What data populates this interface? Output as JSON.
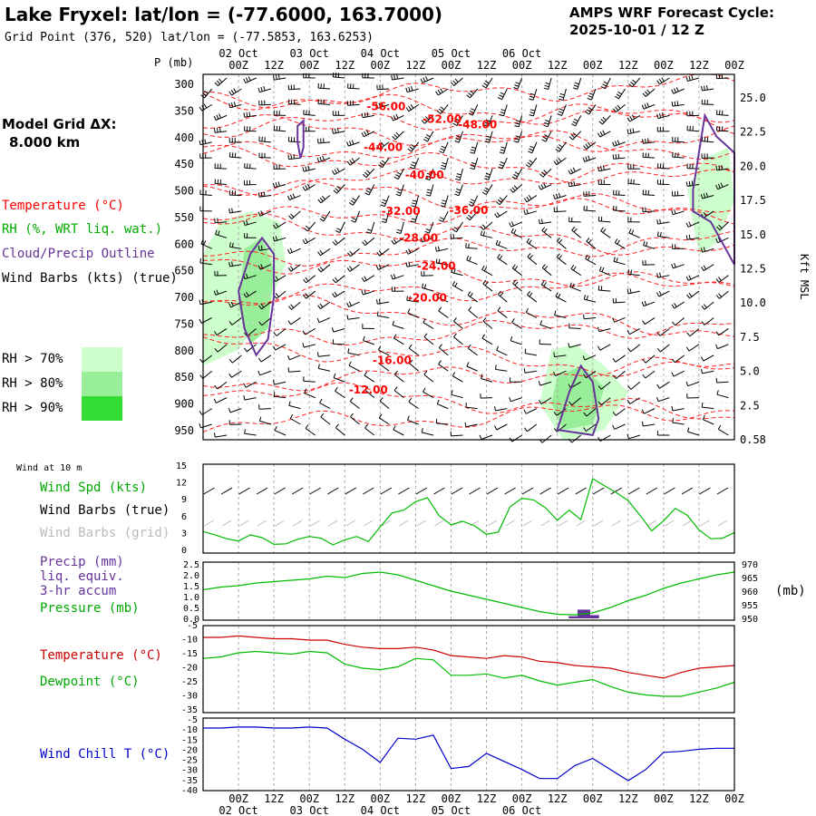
{
  "header": {
    "title": "Lake Fryxel:  lat/lon = (-77.6000, 163.7000)",
    "subtitle": "Grid Point (376, 520) lat/lon = (-77.5853, 163.6253)",
    "cycle_line1": "AMPS WRF Forecast Cycle:",
    "cycle_line2": "2025-10-01 / 12  Z"
  },
  "model_grid": {
    "label": "Model Grid ΔX:",
    "value": "8.000 km"
  },
  "time_axis": {
    "day_labels": [
      "02 Oct",
      "03 Oct",
      "04 Oct",
      "05 Oct",
      "06 Oct"
    ],
    "hour_labels": [
      "00Z",
      "12Z",
      "00Z",
      "12Z",
      "00Z",
      "12Z",
      "00Z",
      "12Z",
      "00Z",
      "12Z"
    ]
  },
  "legend": {
    "temperature": "Temperature (°C)",
    "rh": "RH (%, WRT liq. wat.)",
    "cloud": "Cloud/Precip Outline",
    "wind": "Wind Barbs (kts) (true)",
    "rh70": "RH > 70%",
    "rh80": "RH > 80%",
    "rh90": "RH > 90%",
    "colors": {
      "temperature": "#ff0000",
      "rh": "#ff0000",
      "cloud": "#663399",
      "wind": "#000000",
      "rh70": "#ccffcc",
      "rh80": "#99ee99",
      "rh90": "#33dd33"
    }
  },
  "panel_labels": {
    "wind_at_10m": "Wind at 10 m",
    "wind_spd": "Wind Spd (kts)",
    "barbs_true": "Wind Barbs (true)",
    "barbs_grid": "Wind Barbs (grid)",
    "precip_1": "Precip (mm)",
    "precip_2": "liq. equiv.",
    "precip_3": "3-hr accum",
    "pressure": "Pressure (mb)",
    "pressure_units": "(mb)",
    "temperature": "Temperature (°C)",
    "dewpoint": "Dewpoint (°C)",
    "windchill": "Wind Chill T (°C)"
  },
  "chart_data": [
    {
      "type": "heatmap",
      "name_note": "upper-air time-height cross section",
      "ylabel": "P (mb)",
      "y2label": "Kft MSL",
      "pressure_levels": [
        300,
        350,
        400,
        450,
        500,
        550,
        600,
        650,
        700,
        750,
        800,
        850,
        900,
        950
      ],
      "height_kft_labels": [
        "25.0",
        "22.5",
        "20.0",
        "17.5",
        "15.0",
        "12.5",
        "10.0",
        "7.5",
        "5.0",
        "2.5",
        "0.58"
      ],
      "temperature_contour_labels": [
        {
          "label": "-56.00",
          "x_hour": 50,
          "p": 343
        },
        {
          "label": "-52.00",
          "x_hour": 69,
          "p": 367
        },
        {
          "label": "-48.00",
          "x_hour": 81,
          "p": 377
        },
        {
          "label": "-44.00",
          "x_hour": 49,
          "p": 420
        },
        {
          "label": "-40.00",
          "x_hour": 63,
          "p": 472
        },
        {
          "label": "-36.00",
          "x_hour": 78,
          "p": 538
        },
        {
          "label": "-32.00",
          "x_hour": 55,
          "p": 540
        },
        {
          "label": "-28.00",
          "x_hour": 61,
          "p": 590
        },
        {
          "label": "-24.00",
          "x_hour": 67,
          "p": 643
        },
        {
          "label": "-20.00",
          "x_hour": 64,
          "p": 702
        },
        {
          "label": "-16.00",
          "x_hour": 52,
          "p": 820
        },
        {
          "label": "-12.00",
          "x_hour": 44,
          "p": 875
        }
      ],
      "rh_regions": [
        {
          "level": 70,
          "points": [
            [
              -12,
              620
            ],
            [
              -6,
              560
            ],
            [
              4,
              540
            ],
            [
              14,
              560
            ],
            [
              16,
              640
            ],
            [
              10,
              720
            ],
            [
              0,
              800
            ],
            [
              -12,
              830
            ]
          ]
        },
        {
          "level": 80,
          "points": [
            [
              2,
              610
            ],
            [
              8,
              590
            ],
            [
              12,
              650
            ],
            [
              10,
              760
            ],
            [
              4,
              790
            ],
            [
              0,
              720
            ]
          ]
        },
        {
          "level": 70,
          "points": [
            [
              106,
              800
            ],
            [
              114,
              790
            ],
            [
              124,
              830
            ],
            [
              132,
              880
            ],
            [
              124,
              950
            ],
            [
              110,
              970
            ],
            [
              102,
              900
            ]
          ]
        },
        {
          "level": 80,
          "points": [
            [
              108,
              850
            ],
            [
              116,
              830
            ],
            [
              124,
              870
            ],
            [
              120,
              940
            ],
            [
              110,
              950
            ],
            [
              106,
              900
            ]
          ]
        },
        {
          "level": 70,
          "points": [
            [
              152,
              500
            ],
            [
              158,
              440
            ],
            [
              166,
              420
            ],
            [
              168,
              520
            ],
            [
              162,
              600
            ],
            [
              156,
              620
            ]
          ]
        }
      ],
      "cloud_outlines": [
        {
          "points": [
            [
              4,
              620
            ],
            [
              8,
              590
            ],
            [
              12,
              620
            ],
            [
              12,
              700
            ],
            [
              10,
              780
            ],
            [
              6,
              810
            ],
            [
              2,
              760
            ],
            [
              0,
              690
            ]
          ]
        },
        {
          "points": [
            [
              20,
              380
            ],
            [
              22,
              370
            ],
            [
              22,
              420
            ],
            [
              21,
              440
            ],
            [
              20,
              410
            ]
          ]
        },
        {
          "points": [
            [
              108,
              950
            ],
            [
              112,
              880
            ],
            [
              116,
              830
            ],
            [
              120,
              860
            ],
            [
              122,
              930
            ],
            [
              120,
              960
            ]
          ]
        },
        {
          "points": [
            [
              154,
              500
            ],
            [
              158,
              360
            ],
            [
              162,
              400
            ],
            [
              168,
              430
            ],
            [
              168,
              640
            ],
            [
              160,
              560
            ],
            [
              154,
              540
            ]
          ]
        }
      ]
    },
    {
      "type": "line",
      "name_note": "10 m wind speed",
      "ylim": [
        0,
        15
      ],
      "yticks": [
        0,
        3,
        6,
        9,
        12,
        15
      ],
      "x_hours": [
        -12,
        -8,
        -4,
        0,
        4,
        8,
        12,
        16,
        20,
        24,
        28,
        32,
        36,
        40,
        44,
        48,
        52,
        56,
        60,
        64,
        68,
        72,
        76,
        80,
        84,
        88,
        92,
        96,
        100,
        104,
        108,
        112,
        116,
        120,
        124,
        128,
        132,
        136,
        140,
        144,
        148,
        152,
        156,
        160,
        164,
        168
      ],
      "series": [
        {
          "values": [
            3.2,
            2.6,
            1.9,
            1.5,
            2.6,
            2.1,
            0.9,
            1.0,
            1.8,
            2.3,
            2.0,
            0.8,
            1.7,
            2.3,
            1.4,
            4.0,
            6.5,
            7.0,
            8.5,
            9.2,
            6.0,
            4.4,
            5.0,
            4.2,
            2.7,
            3.1,
            7.6,
            9.1,
            8.8,
            7.4,
            5.2,
            7.0,
            5.3,
            12.6,
            11.3,
            10.1,
            8.7,
            6.1,
            3.3,
            5.1,
            7.3,
            6.1,
            3.5,
            1.9,
            2.0,
            3.0
          ],
          "color": "#00bb00"
        }
      ]
    },
    {
      "type": "line",
      "name_note": "pressure and 3-hr precipitation",
      "ylim": [
        950,
        970
      ],
      "yticks_left": [
        "0.0",
        "0.5",
        "1.0",
        "1.5",
        "2.0",
        "2.5"
      ],
      "yticks_right": [
        950,
        955,
        960,
        965,
        970
      ],
      "x_hours": [
        -12,
        -6,
        0,
        6,
        12,
        18,
        24,
        30,
        36,
        42,
        48,
        54,
        60,
        66,
        72,
        78,
        84,
        90,
        96,
        102,
        108,
        114,
        120,
        126,
        132,
        138,
        144,
        150,
        156,
        162,
        168
      ],
      "series": [
        {
          "values": [
            960.5,
            961.5,
            962.0,
            963.0,
            963.5,
            964.0,
            964.5,
            965.5,
            965.0,
            966.5,
            967.0,
            966.0,
            964.0,
            962.0,
            960.0,
            958.5,
            957.0,
            955.5,
            954.0,
            952.5,
            951.5,
            951.3,
            952.0,
            954.0,
            956.5,
            958.5,
            961.0,
            963.0,
            964.5,
            966.0,
            967.0
          ],
          "color": "#00bb00"
        }
      ],
      "precip_bars": [
        {
          "x_hour": 114,
          "value": 0.1
        },
        {
          "x_hour": 117,
          "value": 0.4
        },
        {
          "x_hour": 120,
          "value": 0.15
        }
      ]
    },
    {
      "type": "line",
      "name_note": "temperature and dewpoint",
      "ylim": [
        -35,
        -5
      ],
      "yticks": [
        -5,
        -10,
        -15,
        -20,
        -25,
        -30,
        -35
      ],
      "x_hours": [
        -12,
        -6,
        0,
        6,
        12,
        18,
        24,
        30,
        36,
        42,
        48,
        54,
        60,
        66,
        72,
        78,
        84,
        90,
        96,
        102,
        108,
        114,
        120,
        126,
        132,
        138,
        144,
        150,
        156,
        162,
        168
      ],
      "series": [
        {
          "values": [
            -9.5,
            -9.5,
            -9.0,
            -9.5,
            -10.0,
            -10.0,
            -10.5,
            -10.5,
            -12.0,
            -13.0,
            -13.5,
            -13.5,
            -13.0,
            -14.0,
            -16.0,
            -16.5,
            -17.0,
            -16.0,
            -16.5,
            -18.0,
            -18.5,
            -19.5,
            -20.0,
            -20.5,
            -22.0,
            -23.0,
            -24.0,
            -22.0,
            -20.5,
            -20.0,
            -19.5
          ],
          "color": "#cc0000"
        },
        {
          "values": [
            -17.0,
            -16.5,
            -15.0,
            -14.5,
            -15.0,
            -15.5,
            -14.5,
            -15.0,
            -19.0,
            -20.5,
            -21.0,
            -20.0,
            -17.0,
            -17.5,
            -23.0,
            -23.0,
            -22.5,
            -24.0,
            -23.0,
            -25.0,
            -26.5,
            -25.5,
            -24.5,
            -27.0,
            -29.0,
            -30.0,
            -30.5,
            -30.5,
            -29.0,
            -27.5,
            -25.5
          ],
          "color": "#00bb00"
        }
      ]
    },
    {
      "type": "line",
      "name_note": "wind chill temperature",
      "ylim": [
        -40,
        -5
      ],
      "yticks": [
        -5,
        -10,
        -15,
        -20,
        -25,
        -30,
        -35,
        -40
      ],
      "x_hours": [
        -12,
        -6,
        0,
        6,
        12,
        18,
        24,
        30,
        36,
        42,
        48,
        54,
        60,
        66,
        72,
        78,
        84,
        90,
        96,
        102,
        108,
        114,
        120,
        126,
        132,
        138,
        144,
        150,
        156,
        162,
        168
      ],
      "series": [
        {
          "values": [
            -9.5,
            -9.5,
            -9.0,
            -9.0,
            -9.5,
            -9.5,
            -9.0,
            -9.5,
            -15.0,
            -20.0,
            -26.5,
            -14.5,
            -15.0,
            -13.0,
            -29.5,
            -28.5,
            -22.0,
            -26.0,
            -30.0,
            -34.5,
            -34.5,
            -28.0,
            -24.5,
            -30.0,
            -35.5,
            -30.0,
            -21.5,
            -21.0,
            -20.0,
            -19.5,
            -19.5
          ],
          "color": "#0000cc"
        }
      ]
    }
  ]
}
